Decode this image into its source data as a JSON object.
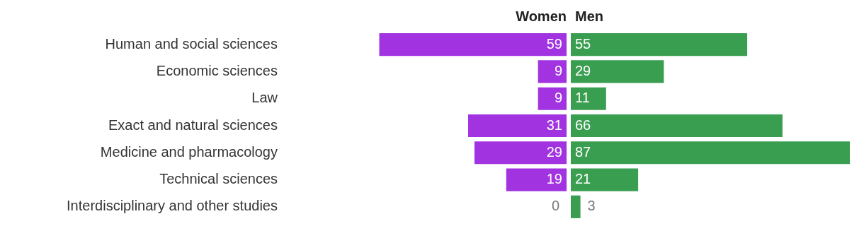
{
  "chart_data": [
    {
      "type": "bar",
      "orientation": "horizontal",
      "title": "Women",
      "categories": [
        "Human and social sciences",
        "Economic sciences",
        "Law",
        "Exact and natural sciences",
        "Medicine and pharmacology",
        "Technical sciences",
        "Interdisciplinary and other studies"
      ],
      "values": [
        59,
        9,
        9,
        31,
        29,
        19,
        0
      ],
      "color": "#a133e0",
      "data_labels": true,
      "tick_labels": "y"
    },
    {
      "type": "bar",
      "orientation": "horizontal",
      "title": "Men",
      "categories": [
        null,
        null,
        null,
        null,
        null,
        null,
        null
      ],
      "values": [
        55,
        29,
        11,
        66,
        87,
        21,
        3
      ],
      "color": "#3a9e51",
      "data_labels": true,
      "tick_labels": false
    }
  ]
}
